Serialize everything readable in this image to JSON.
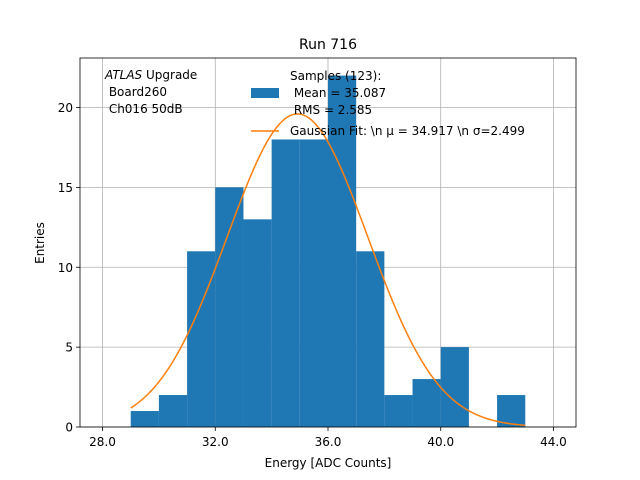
{
  "chart_data": {
    "type": "histogram",
    "title": "Run 716",
    "xlabel": "Energy [ADC Counts]",
    "ylabel": "Entries",
    "xlim": [
      27.2,
      44.8
    ],
    "ylim": [
      0,
      23.1
    ],
    "grid": true,
    "xticks": [
      28,
      32,
      36,
      40,
      44
    ],
    "xtick_labels": [
      "28.0",
      "32.0",
      "36.0",
      "40.0",
      "44.0"
    ],
    "yticks": [
      0,
      5,
      10,
      15,
      20
    ],
    "ytick_labels": [
      "0",
      "5",
      "10",
      "15",
      "20"
    ],
    "bins": {
      "edges": [
        29,
        30,
        31,
        32,
        33,
        34,
        35,
        36,
        37,
        38,
        39,
        40,
        41,
        42,
        43
      ],
      "counts": [
        1,
        2,
        11,
        15,
        13,
        18,
        18,
        22,
        11,
        2,
        3,
        5,
        0,
        2
      ],
      "color": "#1f77b4"
    },
    "fit": {
      "type": "gaussian",
      "amplitude": 19.6,
      "mu": 34.917,
      "sigma": 2.499,
      "x_range": [
        29,
        43
      ],
      "color": "#ff7f0e"
    },
    "annotation": {
      "italic": "ATLAS",
      "rest": " Upgrade",
      "line2": " Board260",
      "line3": " Ch016 50dB"
    },
    "legend": {
      "placement": "top-right",
      "hist_lines": [
        "Samples (123):",
        " Mean = 35.087",
        " RMS = 2.585"
      ],
      "fit_label": "Gaussian Fit: \\n μ = 34.917 \\n σ=2.499"
    }
  }
}
